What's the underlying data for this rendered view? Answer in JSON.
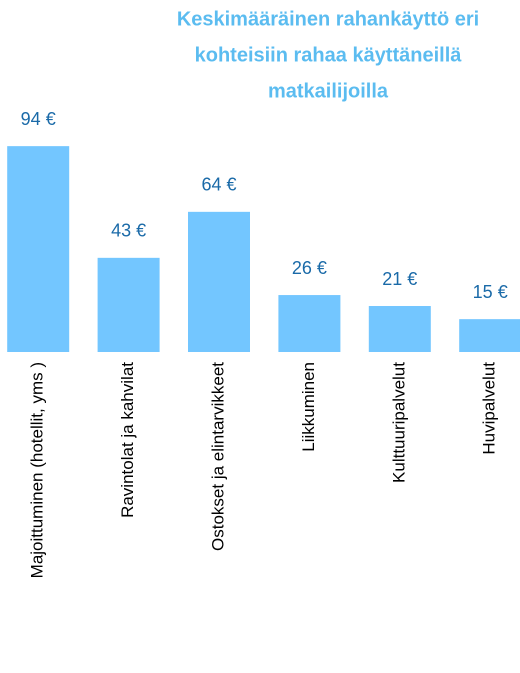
{
  "chart_data": {
    "type": "bar",
    "title": [
      "Keskimääräinen rahankäyttö  eri",
      "kohteisiin rahaa käyttäneillä",
      "matkailijoilla"
    ],
    "categories": [
      "Majoittuminen (hotellit, yms )",
      "Ravintolat ja kahvilat",
      "Ostokset ja elintarvikkeet",
      "Liikkuminen",
      "Kulttuuripalvelut",
      "Huvipalvelut"
    ],
    "values": [
      94,
      43,
      64,
      26,
      21,
      15
    ],
    "value_labels": [
      "94 €",
      "43 €",
      "64 €",
      "26 €",
      "21 €",
      "15 €"
    ],
    "color": "#73c6ff"
  }
}
